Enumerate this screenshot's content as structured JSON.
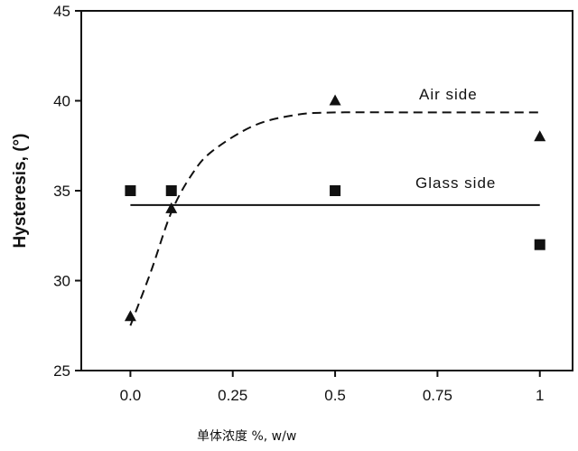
{
  "chart_data": {
    "type": "scatter",
    "xlabel": "单体浓度 %, w/w",
    "ylabel": "Hysteresis, (°)",
    "xlim": [
      -0.12,
      1.08
    ],
    "ylim": [
      25,
      45
    ],
    "x_ticks": [
      0.0,
      0.25,
      0.5,
      0.75,
      1.0
    ],
    "x_tick_labels": [
      "0.0",
      "0.25",
      "0.5",
      "0.75",
      "1"
    ],
    "y_ticks": [
      25,
      30,
      35,
      40,
      45
    ],
    "y_tick_labels": [
      "25",
      "30",
      "35",
      "40",
      "45"
    ],
    "grid": false,
    "legend": "none",
    "series": [
      {
        "name": "Air side",
        "marker": "triangle",
        "points": [
          {
            "x": 0.0,
            "y": 28
          },
          {
            "x": 0.1,
            "y": 34
          },
          {
            "x": 0.5,
            "y": 40
          },
          {
            "x": 1.0,
            "y": 38
          }
        ],
        "fit": {
          "style": "dashed",
          "points": [
            {
              "x": 0.0,
              "y": 27.5
            },
            {
              "x": 0.05,
              "y": 30.5
            },
            {
              "x": 0.1,
              "y": 33.8
            },
            {
              "x": 0.15,
              "y": 35.9
            },
            {
              "x": 0.2,
              "y": 37.2
            },
            {
              "x": 0.3,
              "y": 38.6
            },
            {
              "x": 0.4,
              "y": 39.2
            },
            {
              "x": 0.5,
              "y": 39.35
            },
            {
              "x": 0.75,
              "y": 39.35
            },
            {
              "x": 1.0,
              "y": 39.35
            }
          ]
        }
      },
      {
        "name": "Glass side",
        "marker": "square",
        "points": [
          {
            "x": 0.0,
            "y": 35
          },
          {
            "x": 0.1,
            "y": 35
          },
          {
            "x": 0.5,
            "y": 35
          },
          {
            "x": 1.0,
            "y": 32
          }
        ],
        "fit": {
          "style": "solid",
          "points": [
            {
              "x": 0.0,
              "y": 34.2
            },
            {
              "x": 1.0,
              "y": 34.2
            }
          ]
        }
      }
    ],
    "annotations": [
      {
        "text": "Air side",
        "series": 0
      },
      {
        "text": "Glass side",
        "series": 1
      }
    ]
  }
}
